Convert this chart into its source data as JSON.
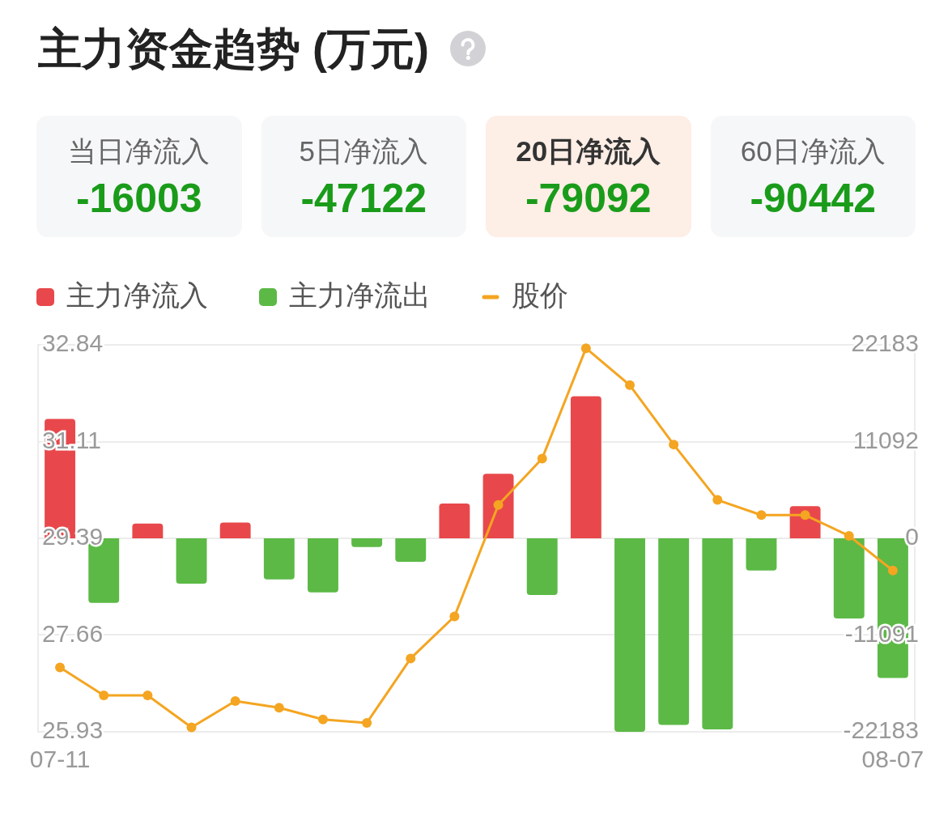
{
  "chart_data": [
    {
      "type": "other",
      "title": "主力资金趋势 (万元)",
      "categories": [
        "当日净流入",
        "5日净流入",
        "20日净流入",
        "60日净流入"
      ],
      "values": [
        -16003,
        -47122,
        -79092,
        -90442
      ],
      "color": "#1a9c1a",
      "colors": [
        "#f6f7f9",
        "#f6f7f9",
        "#fdeee6",
        "#f6f7f9"
      ],
      "data_labels": true
    },
    {
      "type": "bar",
      "categories": [
        "07-11",
        null,
        null,
        null,
        null,
        null,
        null,
        null,
        null,
        null,
        null,
        null,
        null,
        null,
        null,
        null,
        null,
        null,
        null,
        "08-07"
      ],
      "series": [
        {
          "name": "主力净流入",
          "color": "#e8484b",
          "axis": "y2",
          "values": [
            13700,
            null,
            1700,
            null,
            1800,
            null,
            null,
            null,
            null,
            4000,
            7400,
            null,
            16300,
            null,
            null,
            null,
            null,
            3700,
            null,
            null
          ]
        },
        {
          "name": "主力净流出",
          "color": "#5cb946",
          "axis": "y2",
          "values": [
            null,
            -7400,
            null,
            -5200,
            null,
            -4700,
            -6200,
            -1000,
            -2700,
            null,
            null,
            -6500,
            null,
            -22183,
            -21400,
            -21900,
            -3700,
            null,
            -9200,
            -16003
          ]
        },
        {
          "name": "股价",
          "type": "line",
          "color": "#f4a521",
          "marker": "circle",
          "values": [
            27.08,
            26.58,
            26.58,
            26.01,
            26.48,
            26.36,
            26.15,
            26.09,
            27.24,
            27.99,
            29.98,
            30.81,
            32.78,
            32.12,
            31.06,
            30.07,
            29.8,
            29.8,
            29.43,
            28.81
          ]
        }
      ],
      "ylim": [
        25.93,
        32.84
      ],
      "yticks": [
        25.93,
        27.66,
        29.39,
        31.11,
        32.84
      ],
      "y2lim": [
        -22183,
        22183
      ],
      "y2ticks": [
        -22183,
        -11091,
        0,
        11092,
        22183
      ],
      "stacked": true,
      "grid": "y",
      "legend": "top left"
    }
  ]
}
